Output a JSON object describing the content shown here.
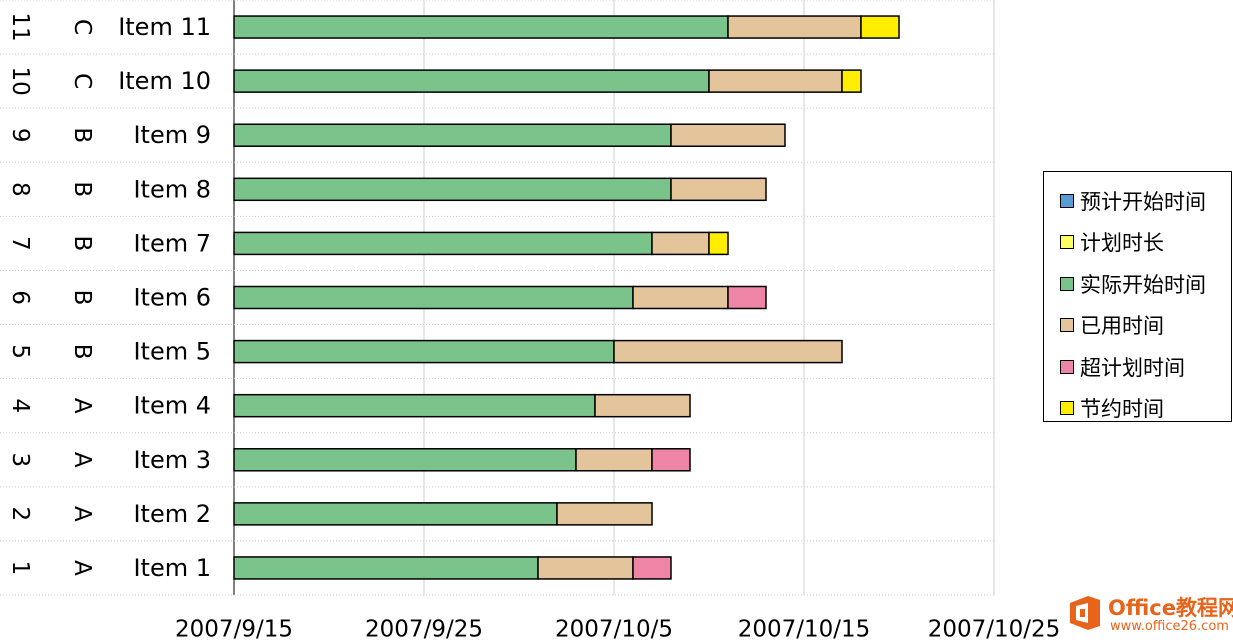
{
  "chart_data": {
    "type": "bar",
    "orientation": "horizontal",
    "stacked": true,
    "xaxis": {
      "type": "date",
      "min": "2007-09-15",
      "max": "2007-10-25",
      "tick_labels": [
        "2007/9/15",
        "2007/9/25",
        "2007/10/5",
        "2007/10/15",
        "2007/10/25"
      ]
    },
    "categories": [
      {
        "num": "1",
        "group": "A",
        "item": "Item 1"
      },
      {
        "num": "2",
        "group": "A",
        "item": "Item 2"
      },
      {
        "num": "3",
        "group": "A",
        "item": "Item 3"
      },
      {
        "num": "4",
        "group": "A",
        "item": "Item 4"
      },
      {
        "num": "5",
        "group": "B",
        "item": "Item 5"
      },
      {
        "num": "6",
        "group": "B",
        "item": "Item 6"
      },
      {
        "num": "7",
        "group": "B",
        "item": "Item 7"
      },
      {
        "num": "8",
        "group": "B",
        "item": "Item 8"
      },
      {
        "num": "9",
        "group": "B",
        "item": "Item 9"
      },
      {
        "num": "10",
        "group": "C",
        "item": "Item 10"
      },
      {
        "num": "11",
        "group": "C",
        "item": "Item 11"
      }
    ],
    "series": [
      {
        "name": "预计开始时间",
        "color": "#5b9bd5",
        "values": [
          0,
          0,
          0,
          0,
          0,
          0,
          0,
          0,
          0,
          0,
          0
        ]
      },
      {
        "name": "计划时长",
        "color": "#ffff66",
        "values": [
          0,
          0,
          0,
          0,
          0,
          0,
          0,
          0,
          0,
          0,
          0
        ]
      },
      {
        "name": "实际开始时间",
        "color": "#7ac48c",
        "values": [
          16,
          17,
          18,
          19,
          20,
          21,
          22,
          23,
          23,
          25,
          26
        ]
      },
      {
        "name": "已用时间",
        "color": "#e3c49b",
        "values": [
          5,
          5,
          4,
          5,
          12,
          5,
          3,
          5,
          6,
          7,
          7
        ]
      },
      {
        "name": "超计划时间",
        "color": "#ee84a6",
        "values": [
          2,
          0,
          2,
          0,
          0,
          2,
          0,
          0,
          0,
          0,
          0
        ]
      },
      {
        "name": "节约时间",
        "color": "#ffee00",
        "values": [
          0,
          0,
          0,
          0,
          0,
          0,
          1,
          0,
          0,
          1,
          2
        ]
      }
    ],
    "grid": true,
    "legend_position": "right"
  },
  "watermark": {
    "name": "Office教程网",
    "url": "www.office26.com"
  }
}
